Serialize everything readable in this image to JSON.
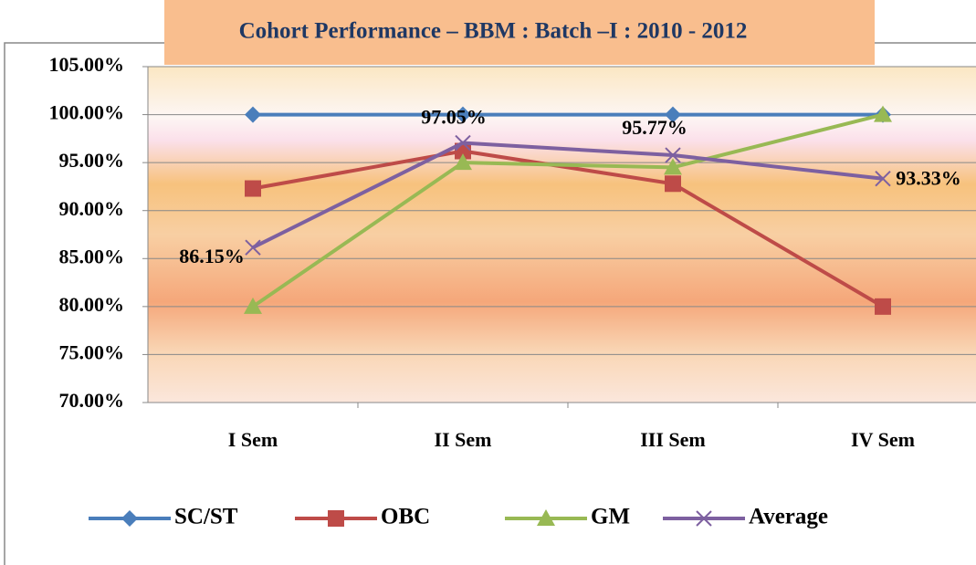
{
  "chart_data": {
    "type": "line",
    "title": "Cohort Performance – BBM : Batch –I : 2010 - 2012",
    "categories": [
      "I Sem",
      "II Sem",
      "III Sem",
      "IV Sem"
    ],
    "series": [
      {
        "name": "SC/ST",
        "color": "#4a7ebb",
        "marker": "diamond",
        "values": [
          100,
          100,
          100,
          100
        ]
      },
      {
        "name": "OBC",
        "color": "#be4b48",
        "marker": "square",
        "values": [
          92.3,
          96.2,
          92.8,
          80
        ]
      },
      {
        "name": "GM",
        "color": "#98b954",
        "marker": "triangle",
        "values": [
          80,
          95,
          94.5,
          100
        ]
      },
      {
        "name": "Average",
        "color": "#7d60a0",
        "marker": "x",
        "values": [
          86.15,
          97.05,
          95.77,
          93.33
        ],
        "value_labels": [
          "86.15%",
          "97.05%",
          "95.77%",
          "93.33%"
        ]
      }
    ],
    "ylim": [
      70,
      105
    ],
    "yticks": [
      {
        "value": 70,
        "label": "70.00%"
      },
      {
        "value": 75,
        "label": "75.00%"
      },
      {
        "value": 80,
        "label": "80.00%"
      },
      {
        "value": 85,
        "label": "85.00%"
      },
      {
        "value": 90,
        "label": "90.00%"
      },
      {
        "value": 95,
        "label": "95.00%"
      },
      {
        "value": 100,
        "label": "100.00%"
      },
      {
        "value": 105,
        "label": "105.00%"
      }
    ],
    "grid": true,
    "legend": "bottom"
  }
}
